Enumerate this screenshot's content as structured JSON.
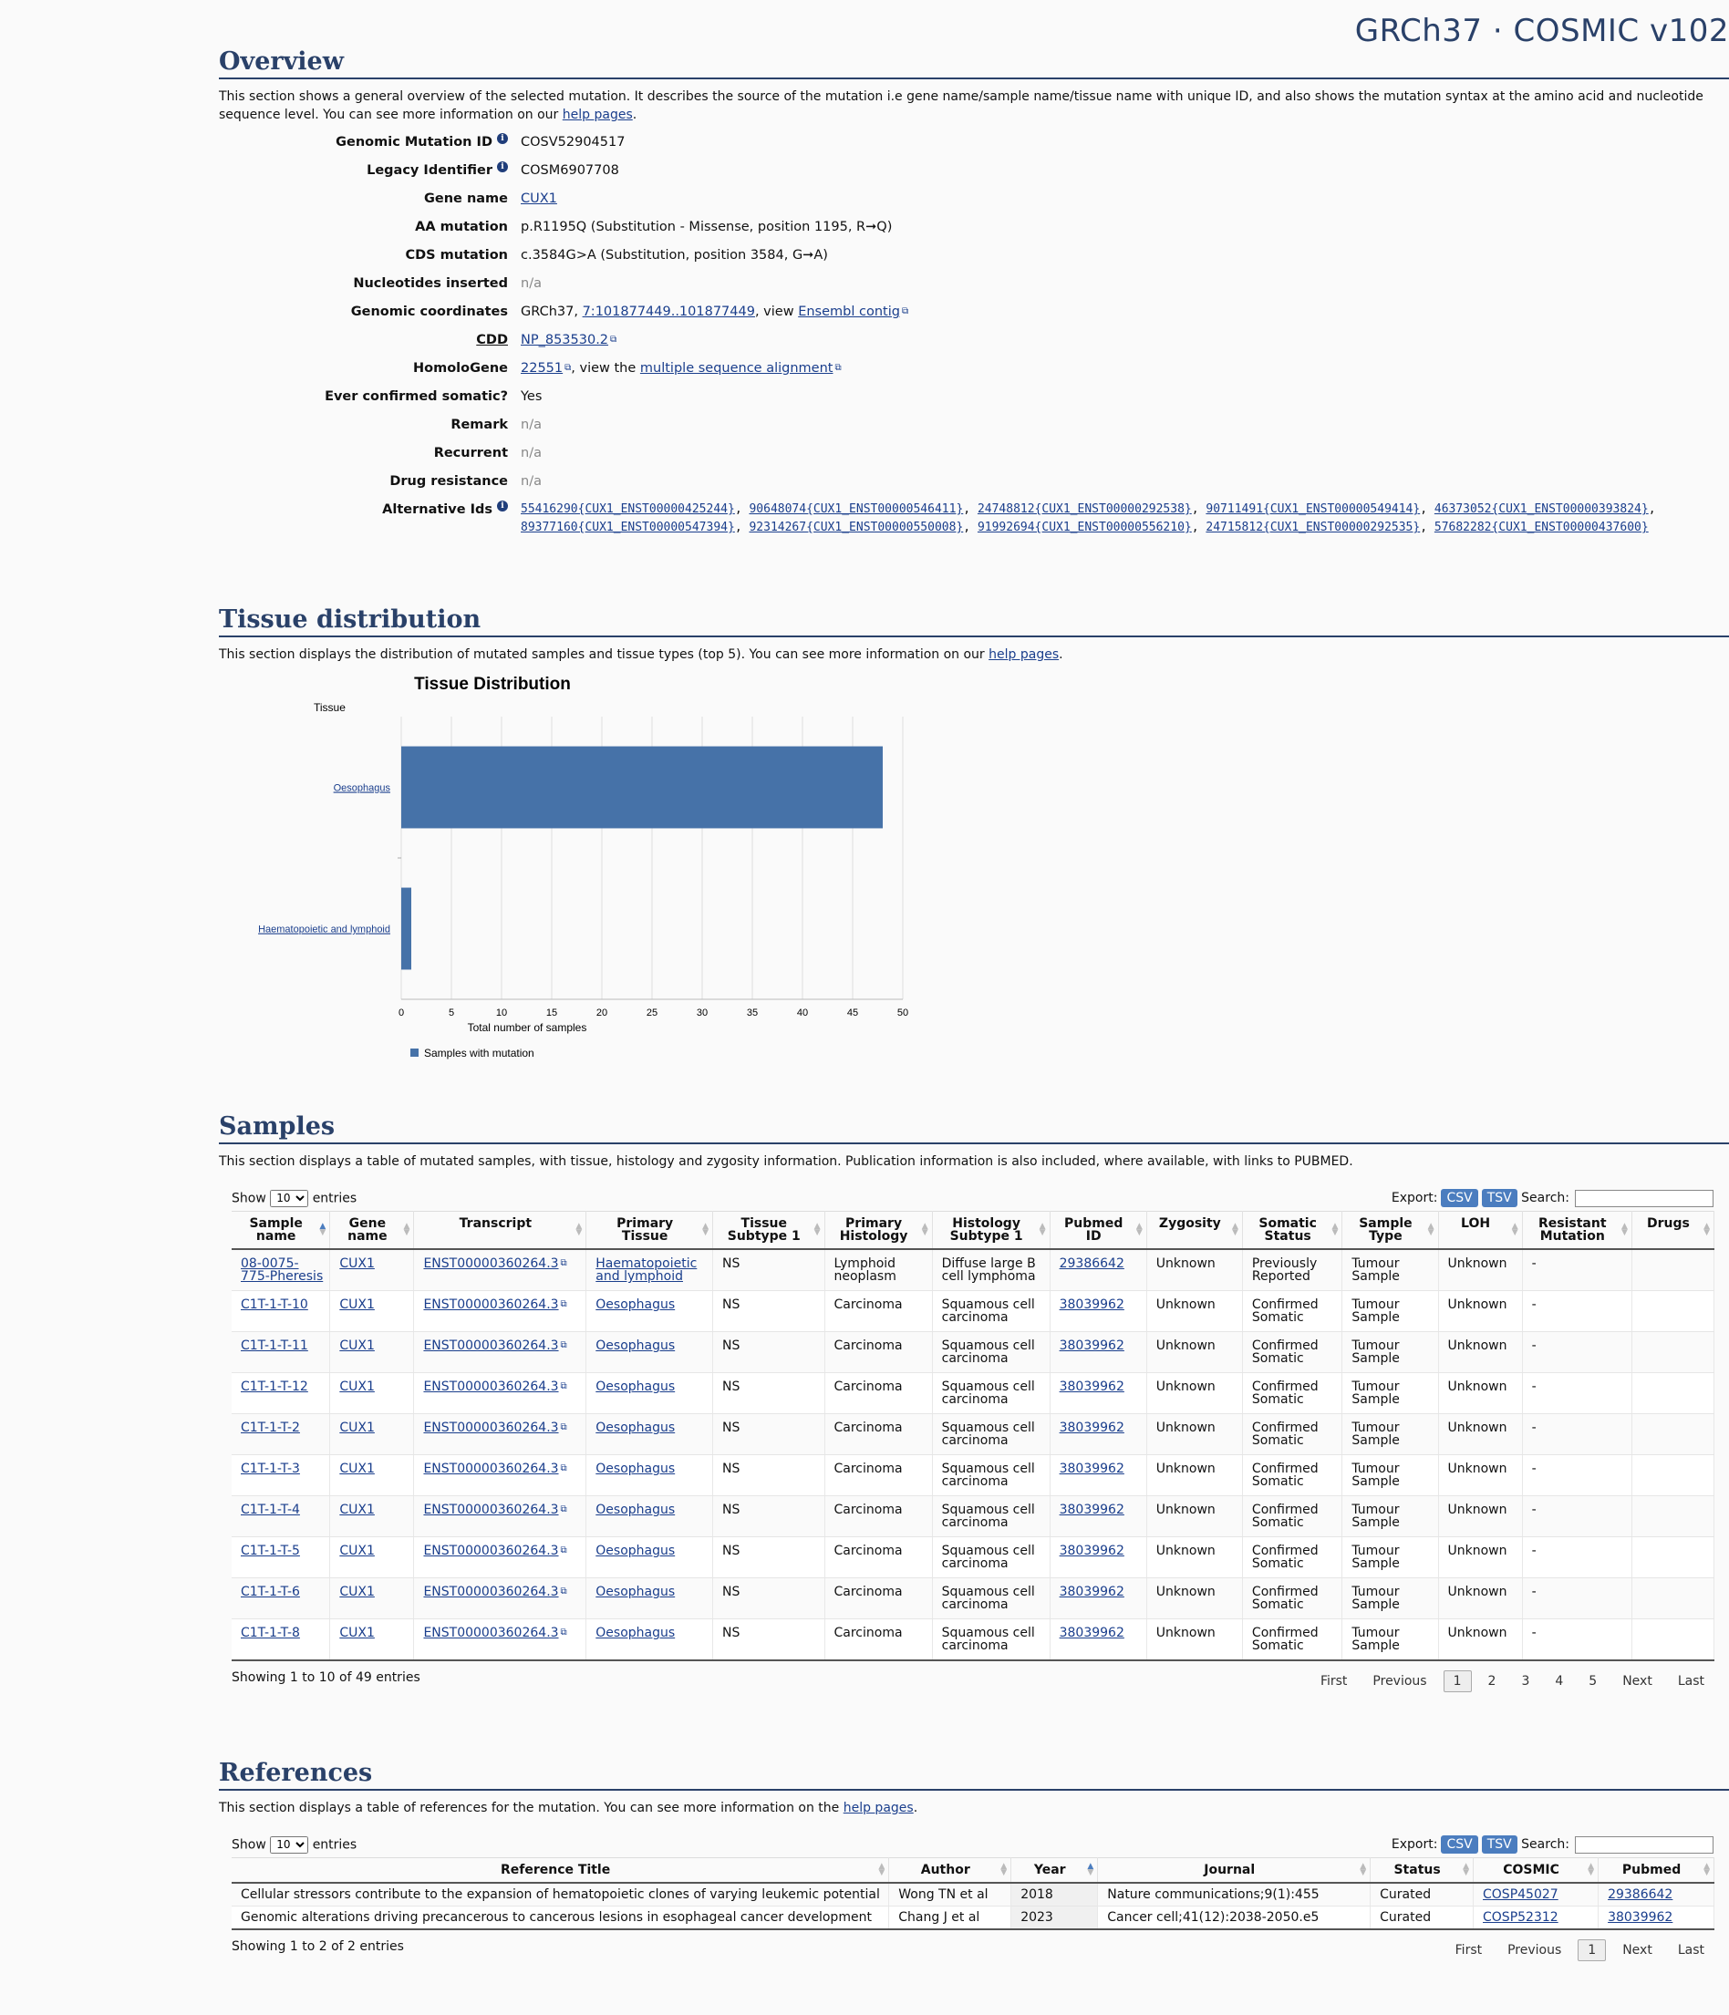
{
  "brand": "GRCh37 · COSMIC v102",
  "overview": {
    "title": "Overview",
    "intro_text": "This section shows a general overview of the selected mutation. It describes the source of the mutation i.e gene name/sample name/tissue name with unique ID, and also shows the mutation syntax at the amino acid and nucleotide sequence level. You can see more information on our ",
    "help_link": "help pages",
    "intro_end": ".",
    "genomic_mutation_id_label": "Genomic Mutation ID",
    "genomic_mutation_id": "COSV52904517",
    "legacy_identifier_label": "Legacy Identifier",
    "legacy_identifier": "COSM6907708",
    "gene_name_label": "Gene name",
    "gene_name": "CUX1",
    "aa_mutation_label": "AA mutation",
    "aa_mutation": "p.R1195Q (Substitution - Missense, position 1195, R➞Q)",
    "cds_mutation_label": "CDS mutation",
    "cds_mutation": "c.3584G>A (Substitution, position 3584, G➞A)",
    "nucleotides_inserted_label": "Nucleotides inserted",
    "nucleotides_inserted": "n/a",
    "genomic_coordinates_label": "Genomic coordinates",
    "genomic_coordinates_prefix": "GRCh37, ",
    "genomic_coordinates_link": "7:101877449..101877449",
    "genomic_coordinates_mid": ", view ",
    "ensembl_link": "Ensembl contig",
    "cdd_label": "CDD",
    "cdd_link": "NP_853530.2",
    "homologene_label": "HomoloGene",
    "homologene_link": "22551",
    "homologene_mid": ", view the ",
    "msa_link": "multiple sequence alignment",
    "ever_confirmed_label": "Ever confirmed somatic?",
    "ever_confirmed": "Yes",
    "remark_label": "Remark",
    "remark": "n/a",
    "recurrent_label": "Recurrent",
    "recurrent": "n/a",
    "drug_resistance_label": "Drug resistance",
    "drug_resistance": "n/a",
    "alternative_ids_label": "Alternative Ids",
    "alternative_ids": [
      "55416290{CUX1_ENST00000425244}",
      "90648074{CUX1_ENST00000546411}",
      "24748812{CUX1_ENST00000292538}",
      "90711491{CUX1_ENST00000549414}",
      "46373052{CUX1_ENST00000393824}",
      "89377160{CUX1_ENST00000547394}",
      "92314267{CUX1_ENST00000550008}",
      "91992694{CUX1_ENST00000556210}",
      "24715812{CUX1_ENST00000292535}",
      "57682282{CUX1_ENST00000437600}"
    ]
  },
  "tissue": {
    "title": "Tissue distribution",
    "intro_text": "This section displays the distribution of mutated samples and tissue types (top 5). You can see more information on our ",
    "help_link": "help pages",
    "intro_end": "."
  },
  "chart_data": {
    "type": "bar",
    "orientation": "horizontal",
    "title": "Tissue Distribution",
    "ylabel": "Tissue",
    "xlabel": "Total number of samples",
    "categories": [
      "Oesophagus",
      "Haematopoietic and lymphoid"
    ],
    "series": [
      {
        "name": "Samples with mutation",
        "values": [
          48,
          1
        ]
      }
    ],
    "xlim": [
      0,
      50
    ],
    "xticks": [
      0,
      5,
      10,
      15,
      20,
      25,
      30,
      35,
      40,
      45,
      50
    ],
    "grid": true,
    "legend": "bottom-left",
    "bar_color": "#4672a8"
  },
  "samples": {
    "title": "Samples",
    "intro_text": "This section displays a table of mutated samples, with tissue, histology and zygosity information. Publication information is also included, where available, with links to PUBMED.",
    "show_label": "Show",
    "show_value": "10",
    "entries_label": "entries",
    "export_label": "Export:",
    "csv_label": "CSV",
    "tsv_label": "TSV",
    "search_label": "Search:",
    "columns": [
      "Sample name",
      "Gene name",
      "Transcript",
      "Primary Tissue",
      "Tissue Subtype 1",
      "Primary Histology",
      "Histology Subtype 1",
      "Pubmed ID",
      "Zygosity",
      "Somatic Status",
      "Sample Type",
      "LOH",
      "Resistant Mutation",
      "Drugs"
    ],
    "rows": [
      [
        "08-0075-775-Pheresis",
        "CUX1",
        "ENST00000360264.3",
        "Haematopoietic and lymphoid",
        "NS",
        "Lymphoid neoplasm",
        "Diffuse large B cell lymphoma",
        "29386642",
        "Unknown",
        "Previously Reported",
        "Tumour Sample",
        "Unknown",
        "-",
        ""
      ],
      [
        "C1T-1-T-10",
        "CUX1",
        "ENST00000360264.3",
        "Oesophagus",
        "NS",
        "Carcinoma",
        "Squamous cell carcinoma",
        "38039962",
        "Unknown",
        "Confirmed Somatic",
        "Tumour Sample",
        "Unknown",
        "-",
        ""
      ],
      [
        "C1T-1-T-11",
        "CUX1",
        "ENST00000360264.3",
        "Oesophagus",
        "NS",
        "Carcinoma",
        "Squamous cell carcinoma",
        "38039962",
        "Unknown",
        "Confirmed Somatic",
        "Tumour Sample",
        "Unknown",
        "-",
        ""
      ],
      [
        "C1T-1-T-12",
        "CUX1",
        "ENST00000360264.3",
        "Oesophagus",
        "NS",
        "Carcinoma",
        "Squamous cell carcinoma",
        "38039962",
        "Unknown",
        "Confirmed Somatic",
        "Tumour Sample",
        "Unknown",
        "-",
        ""
      ],
      [
        "C1T-1-T-2",
        "CUX1",
        "ENST00000360264.3",
        "Oesophagus",
        "NS",
        "Carcinoma",
        "Squamous cell carcinoma",
        "38039962",
        "Unknown",
        "Confirmed Somatic",
        "Tumour Sample",
        "Unknown",
        "-",
        ""
      ],
      [
        "C1T-1-T-3",
        "CUX1",
        "ENST00000360264.3",
        "Oesophagus",
        "NS",
        "Carcinoma",
        "Squamous cell carcinoma",
        "38039962",
        "Unknown",
        "Confirmed Somatic",
        "Tumour Sample",
        "Unknown",
        "-",
        ""
      ],
      [
        "C1T-1-T-4",
        "CUX1",
        "ENST00000360264.3",
        "Oesophagus",
        "NS",
        "Carcinoma",
        "Squamous cell carcinoma",
        "38039962",
        "Unknown",
        "Confirmed Somatic",
        "Tumour Sample",
        "Unknown",
        "-",
        ""
      ],
      [
        "C1T-1-T-5",
        "CUX1",
        "ENST00000360264.3",
        "Oesophagus",
        "NS",
        "Carcinoma",
        "Squamous cell carcinoma",
        "38039962",
        "Unknown",
        "Confirmed Somatic",
        "Tumour Sample",
        "Unknown",
        "-",
        ""
      ],
      [
        "C1T-1-T-6",
        "CUX1",
        "ENST00000360264.3",
        "Oesophagus",
        "NS",
        "Carcinoma",
        "Squamous cell carcinoma",
        "38039962",
        "Unknown",
        "Confirmed Somatic",
        "Tumour Sample",
        "Unknown",
        "-",
        ""
      ],
      [
        "C1T-1-T-8",
        "CUX1",
        "ENST00000360264.3",
        "Oesophagus",
        "NS",
        "Carcinoma",
        "Squamous cell carcinoma",
        "38039962",
        "Unknown",
        "Confirmed Somatic",
        "Tumour Sample",
        "Unknown",
        "-",
        ""
      ]
    ],
    "showing": "Showing 1 to 10 of 49 entries",
    "pager": [
      "First",
      "Previous",
      "1",
      "2",
      "3",
      "4",
      "5",
      "Next",
      "Last"
    ],
    "current_page": "1"
  },
  "references": {
    "title": "References",
    "intro_text": "This section displays a table of references for the mutation. You can see more information on the ",
    "help_link": "help pages",
    "intro_end": ".",
    "show_label": "Show",
    "show_value": "10",
    "entries_label": "entries",
    "export_label": "Export:",
    "csv_label": "CSV",
    "tsv_label": "TSV",
    "search_label": "Search:",
    "columns": [
      "Reference Title",
      "Author",
      "Year",
      "Journal",
      "Status",
      "COSMIC",
      "Pubmed"
    ],
    "rows": [
      [
        "Cellular stressors contribute to the expansion of hematopoietic clones of varying leukemic potential",
        "Wong TN et al",
        "2018",
        "Nature communications;9(1):455",
        "Curated",
        "COSP45027",
        "29386642"
      ],
      [
        "Genomic alterations driving precancerous to cancerous lesions in esophageal cancer development",
        "Chang J et al",
        "2023",
        "Cancer cell;41(12):2038-2050.e5",
        "Curated",
        "COSP52312",
        "38039962"
      ]
    ],
    "showing": "Showing 1 to 2 of 2 entries",
    "pager": [
      "First",
      "Previous",
      "1",
      "Next",
      "Last"
    ],
    "current_page": "1"
  }
}
